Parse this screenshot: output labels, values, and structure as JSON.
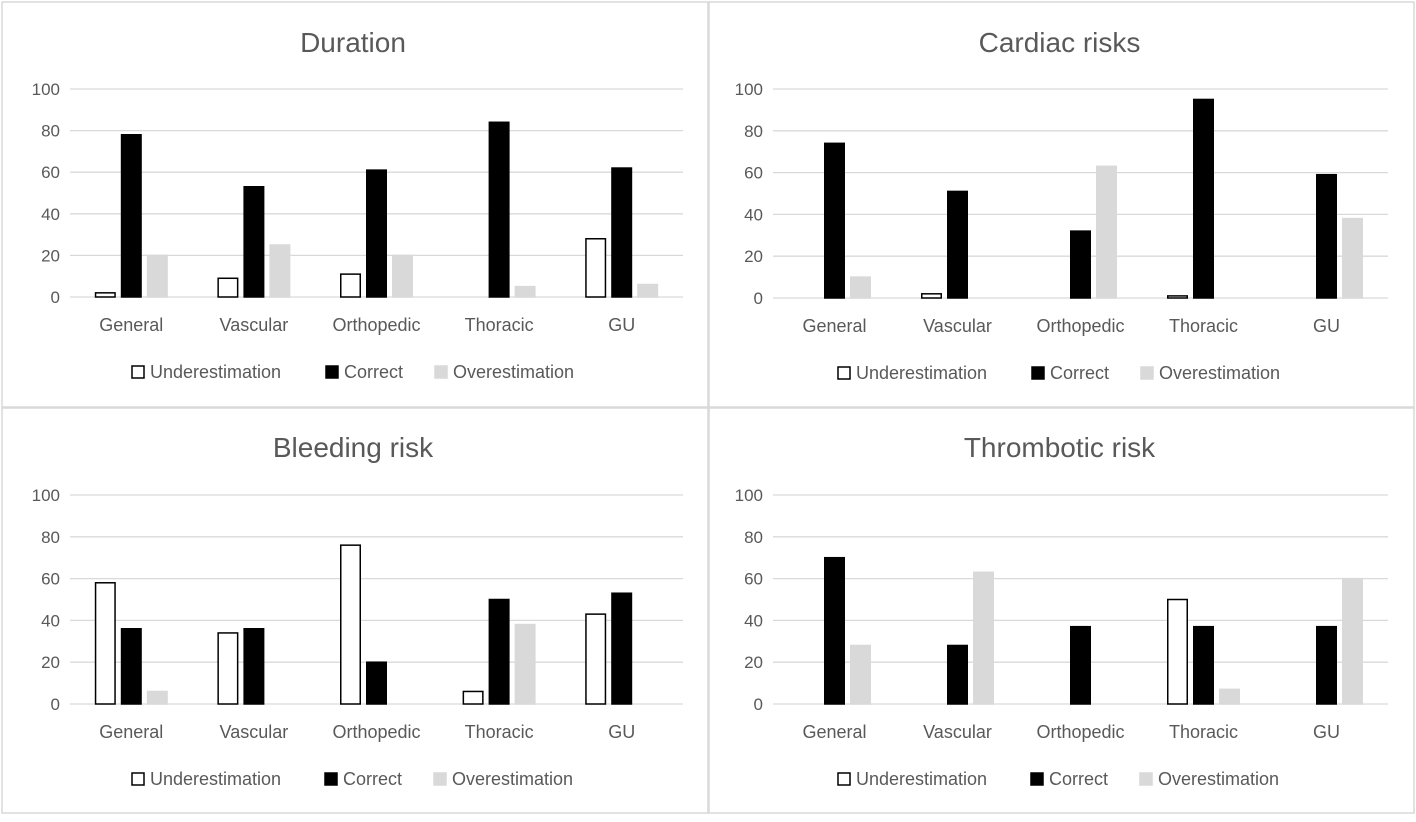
{
  "figure": {
    "panel_border_color": "#d9d9d9",
    "gridline_color": "#d9d9d9",
    "axis_text_color": "#595959",
    "title_color": "#595959"
  },
  "legend_styles": [
    {
      "fill": "#ffffff",
      "stroke": "#000000"
    },
    {
      "fill": "#000000",
      "stroke": "#000000"
    },
    {
      "fill": "#d9d9d9",
      "stroke": "#d9d9d9"
    }
  ],
  "chart_data": [
    {
      "type": "bar",
      "title": "Duration",
      "categories": [
        "General",
        "Vascular",
        "Orthopedic",
        "Thoracic",
        "GU"
      ],
      "ylim": [
        0,
        100
      ],
      "yticks": [
        0,
        20,
        40,
        60,
        80,
        100
      ],
      "legend_position": "bottom",
      "series": [
        {
          "name": "Underestimation",
          "values": [
            2,
            9,
            11,
            0,
            28
          ]
        },
        {
          "name": "Correct",
          "values": [
            78,
            53,
            61,
            84,
            62
          ]
        },
        {
          "name": "Overestimation",
          "values": [
            20,
            25,
            20,
            5,
            6
          ]
        }
      ]
    },
    {
      "type": "bar",
      "title": "Cardiac risks",
      "categories": [
        "General",
        "Vascular",
        "Orthopedic",
        "Thoracic",
        "GU"
      ],
      "ylim": [
        0,
        100
      ],
      "yticks": [
        0,
        20,
        40,
        60,
        80,
        100
      ],
      "legend_position": "bottom",
      "series": [
        {
          "name": "Underestimation",
          "values": [
            0,
            2,
            0,
            1,
            0
          ]
        },
        {
          "name": "Correct",
          "values": [
            74,
            51,
            32,
            95,
            59
          ]
        },
        {
          "name": "Overestimation",
          "values": [
            10,
            0,
            63,
            0,
            38
          ]
        }
      ]
    },
    {
      "type": "bar",
      "title": "Bleeding risk",
      "categories": [
        "General",
        "Vascular",
        "Orthopedic",
        "Thoracic",
        "GU"
      ],
      "ylim": [
        0,
        100
      ],
      "yticks": [
        0,
        20,
        40,
        60,
        80,
        100
      ],
      "legend_position": "bottom",
      "series": [
        {
          "name": "Underestimation",
          "values": [
            58,
            34,
            76,
            6,
            43
          ]
        },
        {
          "name": "Correct",
          "values": [
            36,
            36,
            20,
            50,
            53
          ]
        },
        {
          "name": "Overestimation",
          "values": [
            6,
            0,
            0,
            38,
            0
          ]
        }
      ]
    },
    {
      "type": "bar",
      "title": "Thrombotic risk",
      "categories": [
        "General",
        "Vascular",
        "Orthopedic",
        "Thoracic",
        "GU"
      ],
      "ylim": [
        0,
        100
      ],
      "yticks": [
        0,
        20,
        40,
        60,
        80,
        100
      ],
      "legend_position": "bottom",
      "series": [
        {
          "name": "Underestimation",
          "values": [
            0,
            0,
            0,
            50,
            0
          ]
        },
        {
          "name": "Correct",
          "values": [
            70,
            28,
            37,
            37,
            37
          ]
        },
        {
          "name": "Overestimation",
          "values": [
            28,
            63,
            0,
            7,
            60
          ]
        }
      ]
    }
  ]
}
